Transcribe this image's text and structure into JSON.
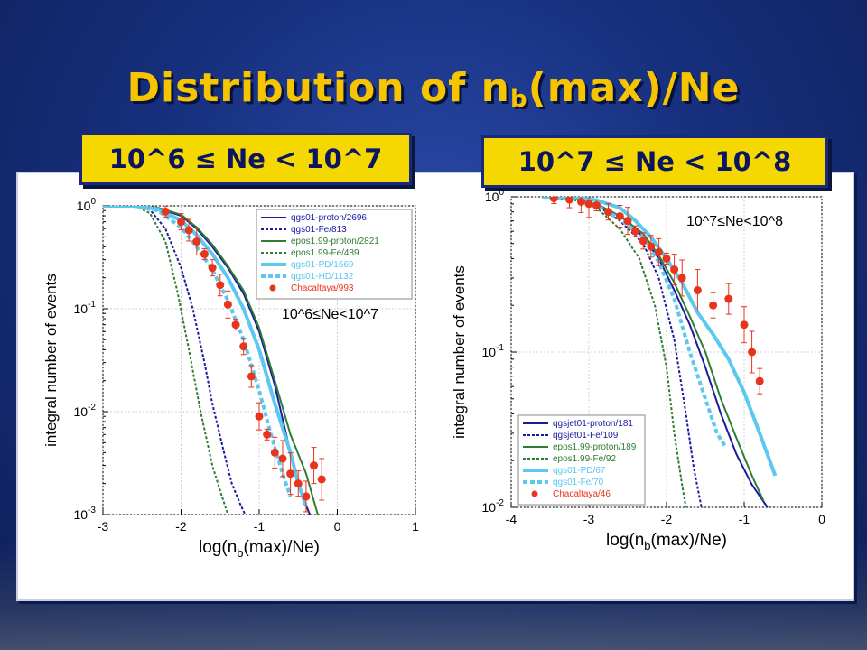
{
  "slide": {
    "title_main": "Distribution of n",
    "title_sub": "b",
    "title_tail": "(max)/Ne",
    "label_left": "10^6 ≤ Ne < 10^7",
    "label_right": "10^7 ≤ Ne < 10^8"
  },
  "chart_data": [
    {
      "type": "line",
      "title": "",
      "annotation": "10^6≤Ne<10^7",
      "ylabel": "integral number of events",
      "xlabel_main": "log(n",
      "xlabel_sub": "b",
      "xlabel_tail": "(max)/Ne)",
      "xlim": [
        -3,
        1
      ],
      "ylim": [
        0.001,
        1
      ],
      "yscale": "log",
      "xticks": [
        "-3",
        "-2",
        "-1",
        "0",
        "1"
      ],
      "yticks": [
        {
          "base": "10",
          "exp": "0"
        },
        {
          "base": "10",
          "exp": "-1"
        },
        {
          "base": "10",
          "exp": "-2"
        },
        {
          "base": "10",
          "exp": "-3"
        }
      ],
      "grid": true,
      "legend_position": "top-right",
      "series": [
        {
          "name": "qgs01-proton/2696",
          "color": "#1a1aa0",
          "style": "solid",
          "x": [
            -3.0,
            -2.6,
            -2.3,
            -2.0,
            -1.8,
            -1.6,
            -1.4,
            -1.2,
            -1.0,
            -0.8,
            -0.6,
            -0.45,
            -0.35
          ],
          "y": [
            1.0,
            1.0,
            0.95,
            0.8,
            0.6,
            0.4,
            0.25,
            0.14,
            0.06,
            0.018,
            0.004,
            0.0015,
            0.001
          ]
        },
        {
          "name": "qgs01-Fe/813",
          "color": "#1a1aa0",
          "style": "dash",
          "x": [
            -3.0,
            -2.6,
            -2.4,
            -2.2,
            -2.0,
            -1.85,
            -1.7,
            -1.6,
            -1.45,
            -1.35,
            -1.25,
            -1.18
          ],
          "y": [
            1.0,
            1.0,
            0.92,
            0.6,
            0.25,
            0.1,
            0.03,
            0.012,
            0.004,
            0.002,
            0.0013,
            0.001
          ]
        },
        {
          "name": "epos1.99-proton/2821",
          "color": "#2e7d32",
          "style": "solid",
          "x": [
            -3.0,
            -2.6,
            -2.3,
            -2.0,
            -1.8,
            -1.6,
            -1.4,
            -1.2,
            -1.0,
            -0.8,
            -0.6,
            -0.4,
            -0.25
          ],
          "y": [
            1.0,
            1.0,
            0.96,
            0.82,
            0.62,
            0.42,
            0.26,
            0.15,
            0.065,
            0.02,
            0.006,
            0.0025,
            0.001
          ]
        },
        {
          "name": "epos1.99-Fe/489",
          "color": "#2e7d32",
          "style": "dash",
          "x": [
            -3.0,
            -2.6,
            -2.4,
            -2.2,
            -2.05,
            -1.9,
            -1.75,
            -1.6,
            -1.5,
            -1.4
          ],
          "y": [
            1.0,
            1.0,
            0.85,
            0.45,
            0.15,
            0.04,
            0.01,
            0.003,
            0.0017,
            0.001
          ]
        },
        {
          "name": "qgs01-PD/1669",
          "color": "#5bc8f0",
          "style": "thick",
          "x": [
            -3.0,
            -2.6,
            -2.3,
            -2.0,
            -1.8,
            -1.6,
            -1.4,
            -1.2,
            -1.0,
            -0.8,
            -0.6,
            -0.5,
            -0.4
          ],
          "y": [
            1.0,
            1.0,
            0.93,
            0.72,
            0.52,
            0.34,
            0.2,
            0.1,
            0.04,
            0.012,
            0.004,
            0.002,
            0.0012
          ]
        },
        {
          "name": "qgs01-HD/1132",
          "color": "#5bc8f0",
          "style": "thickdash",
          "x": [
            -3.0,
            -2.6,
            -2.3,
            -2.0,
            -1.8,
            -1.6,
            -1.4,
            -1.2,
            -1.0,
            -0.85,
            -0.7,
            -0.6
          ],
          "y": [
            1.0,
            1.0,
            0.9,
            0.62,
            0.4,
            0.24,
            0.12,
            0.05,
            0.016,
            0.006,
            0.0025,
            0.0015
          ]
        },
        {
          "name": "Chacaltaya/993",
          "color": "#e8341c",
          "style": "points",
          "x": [
            -2.2,
            -2.0,
            -1.9,
            -1.8,
            -1.7,
            -1.6,
            -1.5,
            -1.4,
            -1.3,
            -1.2,
            -1.1,
            -1.0,
            -0.9,
            -0.8,
            -0.7,
            -0.6,
            -0.5,
            -0.4,
            -0.3,
            -0.2
          ],
          "y": [
            0.88,
            0.7,
            0.58,
            0.45,
            0.34,
            0.25,
            0.17,
            0.11,
            0.07,
            0.043,
            0.022,
            0.009,
            0.006,
            0.004,
            0.0035,
            0.0025,
            0.002,
            0.0015,
            0.003,
            0.0022
          ]
        }
      ]
    },
    {
      "type": "line",
      "title": "",
      "annotation": "10^7≤Ne<10^8",
      "ylabel": "integral number of events",
      "xlabel_main": "log(n",
      "xlabel_sub": "b",
      "xlabel_tail": "(max)/Ne)",
      "xlim": [
        -4,
        0
      ],
      "ylim": [
        0.01,
        1
      ],
      "yscale": "log",
      "xticks": [
        "-4",
        "-3",
        "-2",
        "-1",
        "0"
      ],
      "yticks": [
        {
          "base": "10",
          "exp": "0"
        },
        {
          "base": "10",
          "exp": "-1"
        },
        {
          "base": "10",
          "exp": "-2"
        }
      ],
      "grid": true,
      "legend_position": "bottom-left",
      "series": [
        {
          "name": "qgsjet01-proton/181",
          "color": "#1a1aa0",
          "style": "solid",
          "x": [
            -3.6,
            -3.2,
            -2.9,
            -2.7,
            -2.5,
            -2.3,
            -2.1,
            -1.9,
            -1.7,
            -1.5,
            -1.3,
            -1.1,
            -0.9,
            -0.7
          ],
          "y": [
            1.0,
            0.98,
            0.9,
            0.8,
            0.7,
            0.55,
            0.4,
            0.25,
            0.15,
            0.08,
            0.04,
            0.022,
            0.014,
            0.01
          ]
        },
        {
          "name": "qgsjet01-Fe/109",
          "color": "#1a1aa0",
          "style": "dash",
          "x": [
            -3.6,
            -3.2,
            -2.9,
            -2.6,
            -2.3,
            -2.1,
            -1.9,
            -1.75,
            -1.65,
            -1.55
          ],
          "y": [
            1.0,
            0.97,
            0.88,
            0.7,
            0.5,
            0.3,
            0.12,
            0.04,
            0.018,
            0.01
          ]
        },
        {
          "name": "epos1.99-proton/189",
          "color": "#2e7d32",
          "style": "solid",
          "x": [
            -3.6,
            -3.2,
            -2.9,
            -2.6,
            -2.3,
            -2.1,
            -1.9,
            -1.7,
            -1.5,
            -1.3,
            -1.1,
            -0.9,
            -0.75
          ],
          "y": [
            1.0,
            0.98,
            0.9,
            0.75,
            0.58,
            0.42,
            0.28,
            0.17,
            0.1,
            0.05,
            0.028,
            0.016,
            0.011
          ]
        },
        {
          "name": "epos1.99-Fe/92",
          "color": "#2e7d32",
          "style": "dash",
          "x": [
            -3.6,
            -3.2,
            -2.9,
            -2.6,
            -2.35,
            -2.15,
            -2.0,
            -1.9,
            -1.8,
            -1.75
          ],
          "y": [
            1.0,
            0.96,
            0.85,
            0.62,
            0.4,
            0.2,
            0.08,
            0.03,
            0.014,
            0.01
          ]
        },
        {
          "name": "qgs01-PD/67",
          "color": "#5bc8f0",
          "style": "thick",
          "x": [
            -3.6,
            -3.2,
            -2.9,
            -2.6,
            -2.4,
            -2.2,
            -2.0,
            -1.8,
            -1.6,
            -1.4,
            -1.2,
            -1.0,
            -0.8,
            -0.6
          ],
          "y": [
            1.0,
            1.0,
            0.95,
            0.85,
            0.7,
            0.55,
            0.4,
            0.28,
            0.18,
            0.13,
            0.09,
            0.055,
            0.03,
            0.016
          ]
        },
        {
          "name": "qgs01-Fe/70",
          "color": "#5bc8f0",
          "style": "thickdash",
          "x": [
            -3.6,
            -3.2,
            -2.9,
            -2.6,
            -2.3,
            -2.1,
            -1.9,
            -1.7,
            -1.5,
            -1.35,
            -1.25
          ],
          "y": [
            1.0,
            0.98,
            0.88,
            0.72,
            0.55,
            0.38,
            0.22,
            0.1,
            0.05,
            0.03,
            0.025
          ]
        },
        {
          "name": "Chacaltaya/46",
          "color": "#e8341c",
          "style": "points",
          "x": [
            -3.45,
            -3.25,
            -3.1,
            -3.0,
            -2.9,
            -2.75,
            -2.6,
            -2.5,
            -2.4,
            -2.3,
            -2.2,
            -2.1,
            -2.0,
            -1.9,
            -1.8,
            -1.6,
            -1.4,
            -1.2,
            -1.0,
            -0.9,
            -0.8
          ],
          "y": [
            0.98,
            0.96,
            0.93,
            0.9,
            0.88,
            0.8,
            0.75,
            0.7,
            0.6,
            0.52,
            0.48,
            0.44,
            0.4,
            0.34,
            0.3,
            0.25,
            0.2,
            0.22,
            0.15,
            0.1,
            0.065
          ]
        }
      ]
    }
  ]
}
